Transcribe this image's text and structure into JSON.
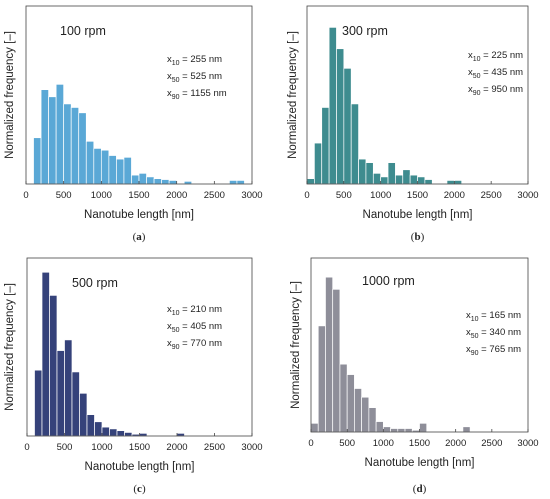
{
  "chart_data": [
    {
      "type": "bar",
      "panel": "a",
      "caption": "(a)",
      "title": "100 rpm",
      "stats": [
        {
          "sym": "x",
          "sub": "10",
          "text": " = 255 nm"
        },
        {
          "sym": "x",
          "sub": "50",
          "text": " = 525 nm"
        },
        {
          "sym": "x",
          "sub": "90",
          "text": " = 1155 nm"
        }
      ],
      "xlabel": "Nanotube length [nm]",
      "ylabel": "Normalized frequency [–]",
      "xlim": [
        0,
        3000
      ],
      "xticks": [
        "0",
        "500",
        "1000",
        "1500",
        "2000",
        "2500",
        "3000"
      ],
      "ylim": [
        0,
        1
      ],
      "bin_width": 100,
      "color": "#5aa8d6",
      "x": [
        150,
        250,
        350,
        450,
        550,
        650,
        750,
        850,
        950,
        1050,
        1150,
        1250,
        1350,
        1450,
        1550,
        1650,
        1750,
        1850,
        1950,
        2050,
        2150,
        2250,
        2350,
        2450,
        2550,
        2650,
        2750,
        2850,
        2950
      ],
      "values": [
        0.26,
        0.53,
        0.49,
        0.56,
        0.45,
        0.43,
        0.4,
        0.24,
        0.2,
        0.19,
        0.16,
        0.14,
        0.15,
        0.05,
        0.06,
        0.04,
        0.03,
        0.025,
        0.02,
        0.0,
        0.015,
        0.0,
        0.0,
        0.0,
        0.0,
        0.0,
        0.02,
        0.02,
        0.0
      ]
    },
    {
      "type": "bar",
      "panel": "b",
      "caption": "(b)",
      "title": "300 rpm",
      "stats": [
        {
          "sym": "x",
          "sub": "10",
          "text": " = 225 nm"
        },
        {
          "sym": "x",
          "sub": "50",
          "text": " = 435 nm"
        },
        {
          "sym": "x",
          "sub": "90",
          "text": " = 950 nm"
        }
      ],
      "xlabel": "Nanotube length [nm]",
      "ylabel": "Normalized frequency [–]",
      "xlim": [
        0,
        3000
      ],
      "xticks": [
        "0",
        "500",
        "1000",
        "1500",
        "2000",
        "2500",
        "3000"
      ],
      "ylim": [
        0,
        1
      ],
      "bin_width": 100,
      "color": "#3e8c8f",
      "x": [
        50,
        150,
        250,
        350,
        450,
        550,
        650,
        750,
        850,
        950,
        1050,
        1150,
        1250,
        1350,
        1450,
        1550,
        1650,
        1750,
        1850,
        1950,
        2050
      ],
      "values": [
        0.03,
        0.23,
        0.43,
        0.88,
        0.76,
        0.65,
        0.45,
        0.14,
        0.12,
        0.06,
        0.04,
        0.12,
        0.05,
        0.08,
        0.05,
        0.04,
        0.025,
        0.0,
        0.0,
        0.02,
        0.02
      ]
    },
    {
      "type": "bar",
      "panel": "c",
      "caption": "(c)",
      "title": "500 rpm",
      "stats": [
        {
          "sym": "x",
          "sub": "10",
          "text": " = 210 nm"
        },
        {
          "sym": "x",
          "sub": "50",
          "text": " = 405 nm"
        },
        {
          "sym": "x",
          "sub": "90",
          "text": " = 770 nm"
        }
      ],
      "xlabel": "Nanotube length [nm]",
      "ylabel": "Normalized frequency [–]",
      "xlim": [
        0,
        3000
      ],
      "xticks": [
        "0",
        "500",
        "1000",
        "1500",
        "2000",
        "2500",
        "3000"
      ],
      "ylim": [
        0,
        1
      ],
      "bin_width": 100,
      "color": "#35427a",
      "x": [
        150,
        250,
        350,
        450,
        550,
        650,
        750,
        850,
        950,
        1050,
        1150,
        1250,
        1350,
        1450,
        1550,
        1650,
        1750,
        1850,
        1950,
        2050
      ],
      "values": [
        0.37,
        0.92,
        0.79,
        0.48,
        0.54,
        0.36,
        0.24,
        0.12,
        0.08,
        0.05,
        0.04,
        0.03,
        0.02,
        0.01,
        0.015,
        0.0,
        0.0,
        0.0,
        0.0,
        0.015
      ]
    },
    {
      "type": "bar",
      "panel": "d",
      "caption": "(d)",
      "title": "1000 rpm",
      "stats": [
        {
          "sym": "x",
          "sub": "10",
          "text": " = 165 nm"
        },
        {
          "sym": "x",
          "sub": "50",
          "text": " = 340 nm"
        },
        {
          "sym": "x",
          "sub": "90",
          "text": " = 765 nm"
        }
      ],
      "xlabel": "Nanotube length [nm]",
      "ylabel": "Normalized frequency [–]",
      "xlim": [
        0,
        3000
      ],
      "xticks": [
        "0",
        "500",
        "1000",
        "1500",
        "2000",
        "2500",
        "3000"
      ],
      "ylim": [
        0,
        1
      ],
      "bin_width": 100,
      "color": "#8e8e99",
      "x": [
        50,
        150,
        250,
        350,
        450,
        550,
        650,
        750,
        850,
        950,
        1050,
        1150,
        1250,
        1350,
        1450,
        1550,
        1650,
        1750,
        1850,
        1950,
        2050,
        2150
      ],
      "values": [
        0.05,
        0.61,
        0.89,
        0.82,
        0.39,
        0.33,
        0.25,
        0.2,
        0.14,
        0.06,
        0.03,
        0.02,
        0.02,
        0.02,
        0.01,
        0.05,
        0.0,
        0.0,
        0.0,
        0.0,
        0.0,
        0.03
      ]
    }
  ]
}
